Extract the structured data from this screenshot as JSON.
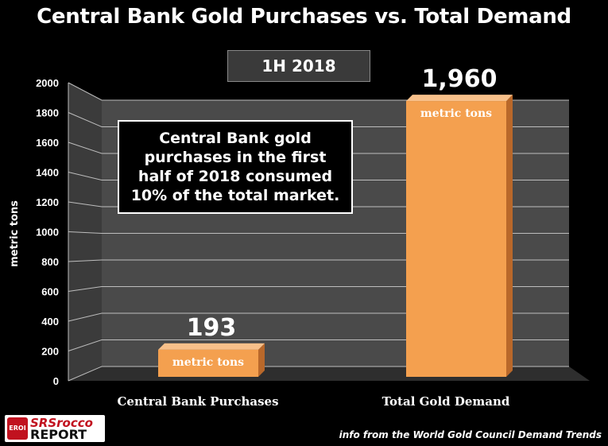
{
  "chart_data": {
    "type": "bar",
    "title": "Central Bank Gold Purchases vs. Total Demand",
    "subtitle": "1H 2018",
    "ylabel": "metric tons",
    "xlabel": "",
    "ylim": [
      0,
      2000
    ],
    "yticks": [
      "0",
      "200",
      "400",
      "600",
      "800",
      "1000",
      "1200",
      "1400",
      "1600",
      "1800",
      "2000"
    ],
    "categories": [
      "Central Bank Purchases",
      "Total Gold Demand"
    ],
    "values": [
      193,
      1960
    ],
    "value_labels": [
      "193",
      "1,960"
    ],
    "unit_label": "metric tons",
    "grid": true,
    "annotation": [
      "Central Bank gold",
      "purchases in the first",
      "half of 2018 consumed",
      "10% of the total market."
    ]
  },
  "colors": {
    "bar_front": "#f4a04f",
    "bar_side": "#b9682a",
    "bar_top": "#f8c08a",
    "plot_back": "#4a4a4a",
    "plot_floor": "#2e2e2e",
    "grid": "#bdbdbd"
  },
  "logo": {
    "top": "SRSrocco",
    "bottom": "REPORT",
    "mark": "EROI"
  },
  "source_note": "info from the World Gold Council Demand Trends"
}
